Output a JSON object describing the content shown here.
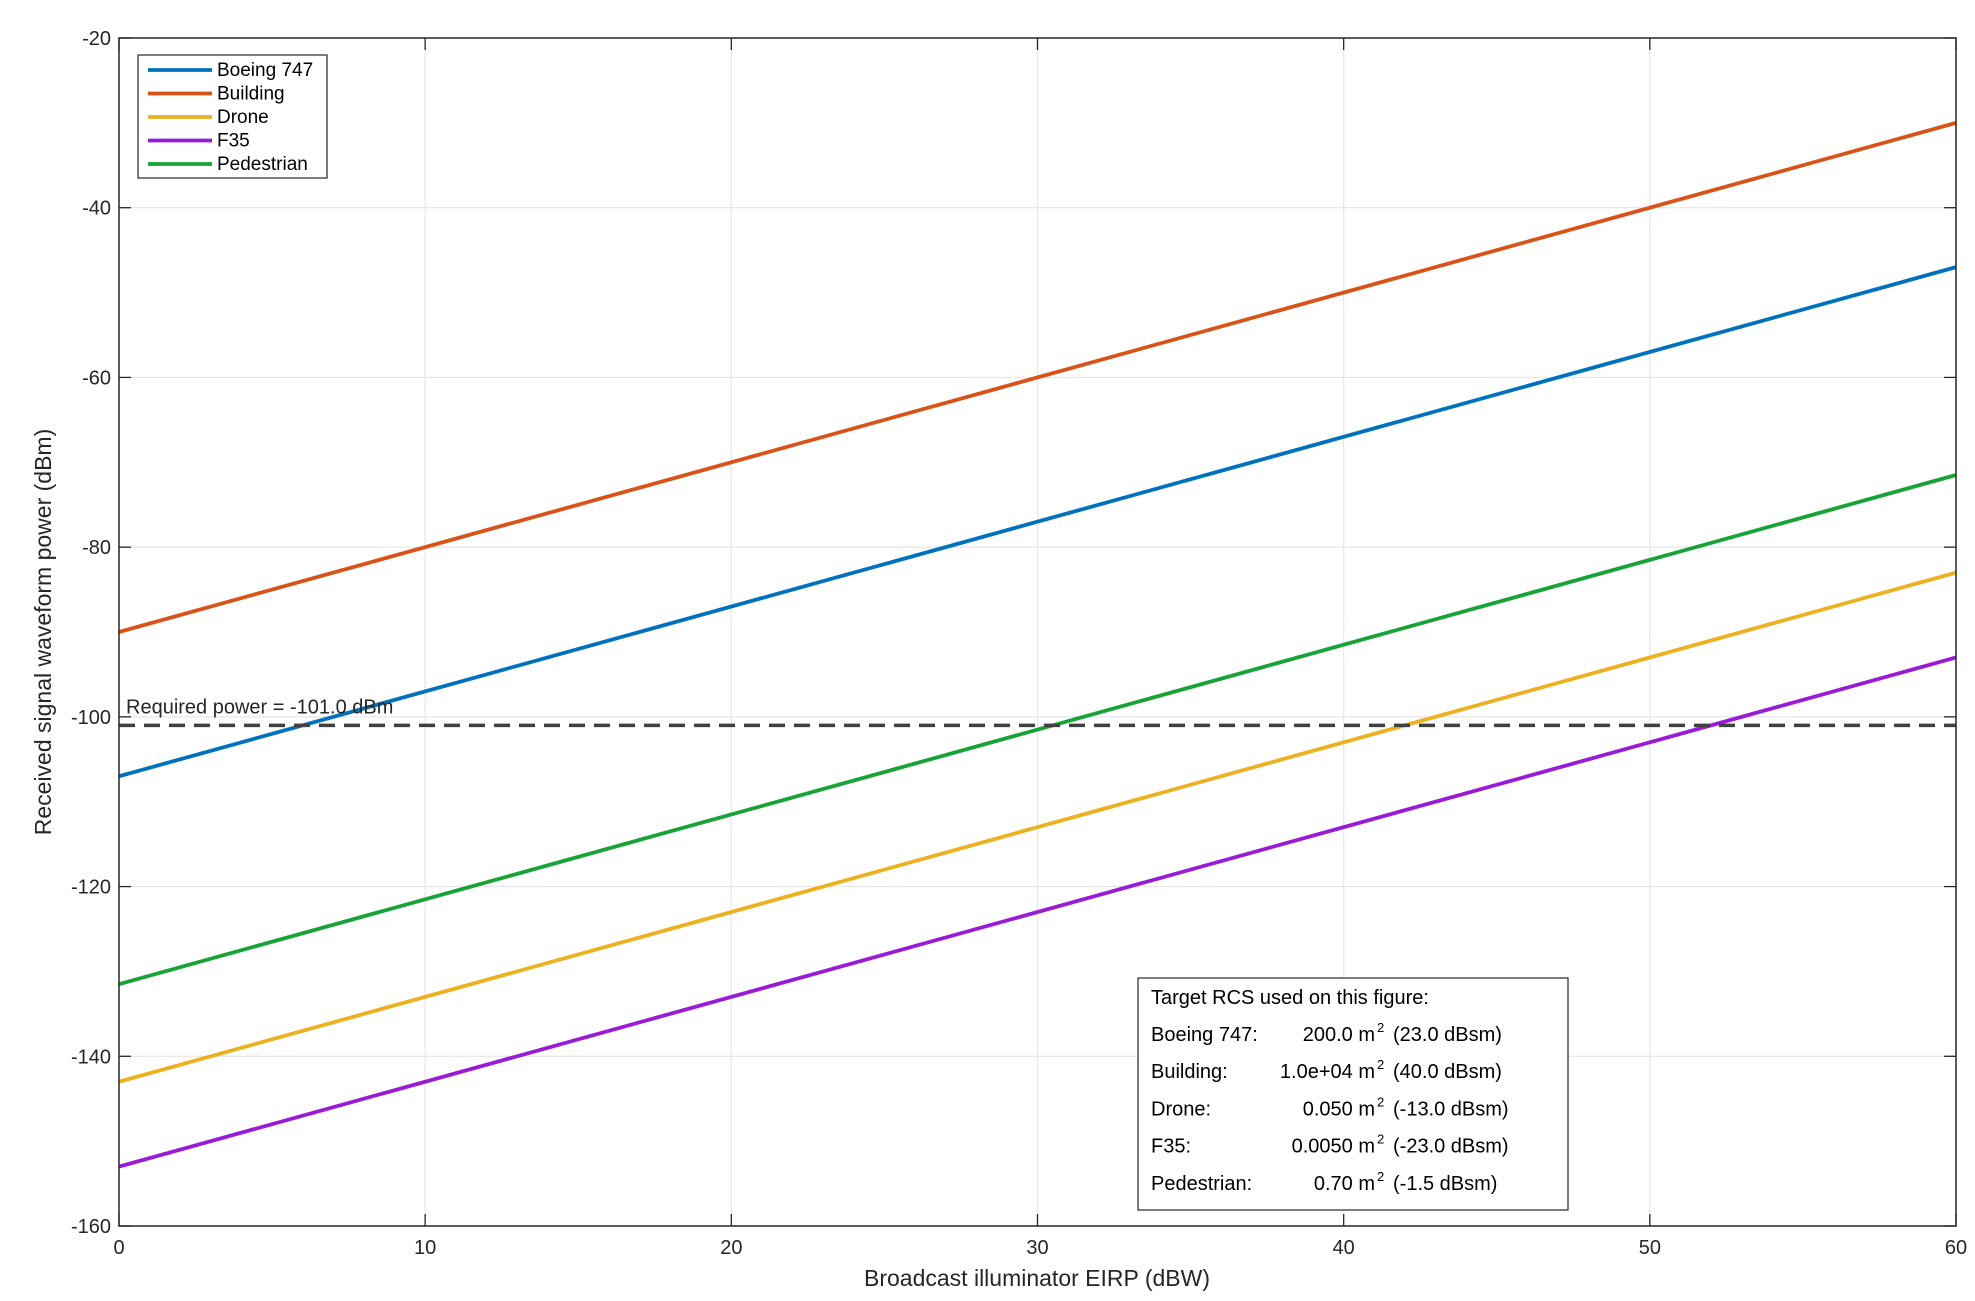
{
  "chart_data": {
    "type": "line",
    "xlabel": "Broadcast illuminator EIRP (dBW)",
    "ylabel": "Received signal waveform power (dBm)",
    "xlim": [
      0,
      60
    ],
    "ylim": [
      -160,
      -20
    ],
    "xticks": [
      0,
      10,
      20,
      30,
      40,
      50,
      60
    ],
    "yticks": [
      -160,
      -140,
      -120,
      -100,
      -80,
      -60,
      -40,
      -20
    ],
    "grid": true,
    "legend_position": "top-left",
    "series": [
      {
        "name": "Boeing 747",
        "color": "#0072BD",
        "x": [
          0,
          60
        ],
        "y": [
          -107,
          -47
        ]
      },
      {
        "name": "Building",
        "color": "#D95319",
        "x": [
          0,
          60
        ],
        "y": [
          -90,
          -30
        ]
      },
      {
        "name": "Drone",
        "color": "#EDB120",
        "x": [
          0,
          60
        ],
        "y": [
          -143,
          -83
        ]
      },
      {
        "name": "F35",
        "color": "#9A1AD6",
        "x": [
          0,
          60
        ],
        "y": [
          -153,
          -93
        ]
      },
      {
        "name": "Pedestrian",
        "color": "#17A335",
        "x": [
          0,
          60
        ],
        "y": [
          -131.5,
          -71.5
        ]
      }
    ],
    "threshold": {
      "y": -101,
      "label": "Required power = -101.0 dBm",
      "color": "#404040"
    },
    "annotation": {
      "title": "Target RCS used on this figure:",
      "rows": [
        {
          "name": "Boeing 747:",
          "value": "200.0 m",
          "sup": "2",
          "dbsm": "(23.0 dBsm)"
        },
        {
          "name": "Building:",
          "value": "1.0e+04 m",
          "sup": "2",
          "dbsm": "(40.0 dBsm)"
        },
        {
          "name": "Drone:",
          "value": "0.050 m",
          "sup": "2",
          "dbsm": "(-13.0 dBsm)"
        },
        {
          "name": "F35:",
          "value": "0.0050 m",
          "sup": "2",
          "dbsm": "(-23.0 dBsm)"
        },
        {
          "name": "Pedestrian:",
          "value": "0.70 m",
          "sup": "2",
          "dbsm": "(-1.5 dBsm)"
        }
      ]
    }
  }
}
